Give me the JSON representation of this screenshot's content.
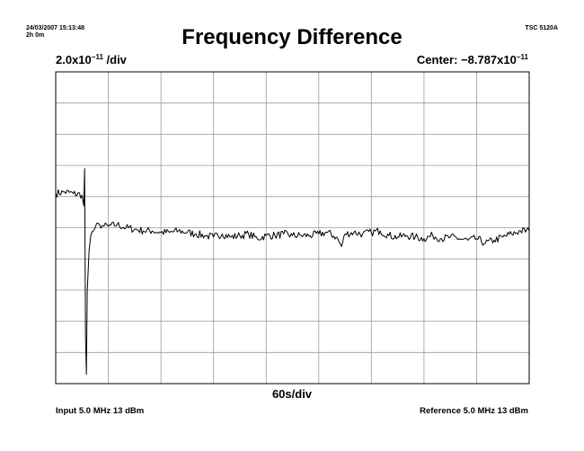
{
  "header": {
    "timestamp": "24/03/2007 15:13:48",
    "duration": "2h 0m",
    "instrument": "TSC 5120A"
  },
  "scale": {
    "y_prefix": "2.0x10",
    "y_exp": "−11",
    "y_suffix": " /div",
    "center_prefix": "Center: −8.787x10",
    "center_exp": "−11",
    "x_label": "60s/div"
  },
  "footer": {
    "input": "Input 5.0 MHz 13 dBm",
    "reference": "Reference 5.0 MHz 13 dBm"
  },
  "colors": {
    "trace": "#000000",
    "grid": "#9a9a9a",
    "frame": "#000000"
  },
  "chart_data": {
    "type": "line",
    "title": "Frequency Difference",
    "xlabel": "60s/div",
    "ylabel": "2.0x10⁻¹¹ /div",
    "x_unit": "s",
    "x_range": [
      0,
      540
    ],
    "y_unit": "fractional frequency offset from center (x1e-11)",
    "y_center": -8.787,
    "y_range": [
      -10,
      10
    ],
    "x_divisions": 9,
    "y_divisions": 10,
    "grid": true,
    "series": [
      {
        "x": [
          0,
          10,
          20,
          30,
          32,
          33,
          34,
          35,
          36,
          37,
          38,
          40,
          45,
          50,
          55,
          60,
          70,
          80,
          90,
          100,
          110,
          120,
          130,
          140,
          150,
          160,
          170,
          180,
          190,
          200,
          210,
          220,
          230,
          240,
          250,
          260,
          270,
          280,
          290,
          300,
          310,
          320,
          326,
          330,
          340,
          350,
          360,
          370,
          380,
          390,
          400,
          410,
          420,
          430,
          440,
          450,
          460,
          470,
          480,
          490,
          500,
          510,
          520,
          530,
          540
        ],
        "y": [
          2.2,
          2.3,
          2.2,
          2.1,
          1.4,
          3.8,
          -7.0,
          -9.4,
          -4.0,
          -2.8,
          -1.5,
          -0.5,
          0.0,
          0.2,
          0.1,
          0.1,
          0.2,
          0.0,
          -0.1,
          -0.2,
          -0.2,
          -0.3,
          -0.3,
          -0.2,
          -0.3,
          -0.4,
          -0.5,
          -0.6,
          -0.4,
          -0.6,
          -0.5,
          -0.4,
          -0.7,
          -0.5,
          -0.5,
          -0.4,
          -0.5,
          -0.5,
          -0.5,
          -0.4,
          -0.3,
          -0.6,
          -1.2,
          -0.4,
          -0.3,
          -0.4,
          -0.3,
          -0.2,
          -0.5,
          -0.6,
          -0.5,
          -0.6,
          -0.7,
          -0.5,
          -0.7,
          -0.6,
          -0.7,
          -0.8,
          -0.7,
          -1.0,
          -0.8,
          -0.6,
          -0.4,
          -0.2,
          -0.2
        ]
      }
    ]
  }
}
